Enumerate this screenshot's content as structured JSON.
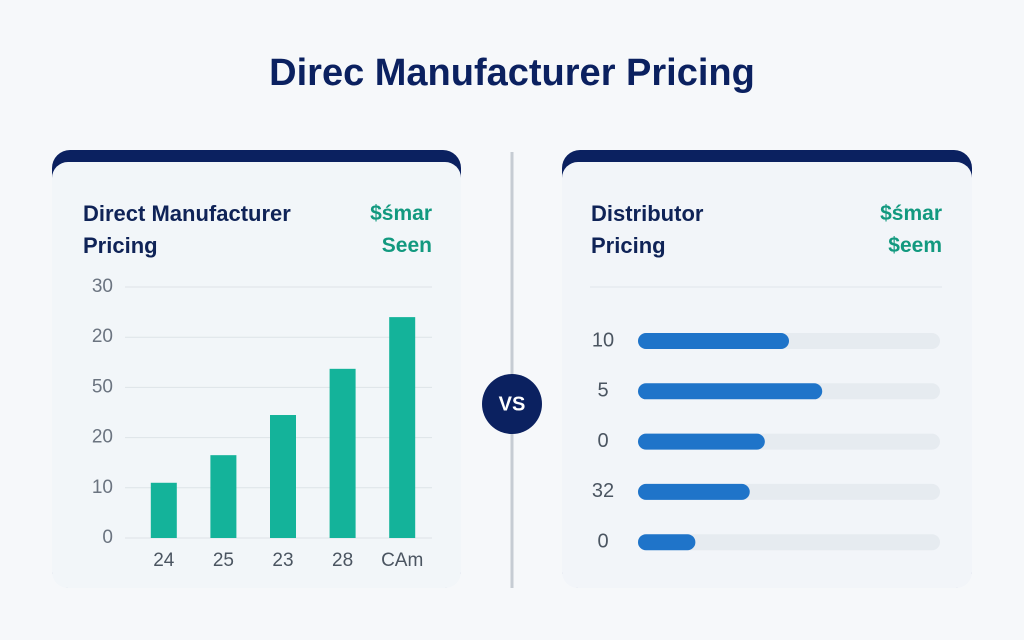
{
  "title": "Direc Manufacturer Pricing",
  "vs_label": "VS",
  "chart_data": [
    {
      "type": "bar",
      "title": "Direct Manufacturer Pricing",
      "badge": [
        "$śmar",
        "Seen"
      ],
      "categories": [
        "24",
        "25",
        "23",
        "28",
        "CAm"
      ],
      "values": [
        1.1,
        1.65,
        2.45,
        3.37,
        4.4
      ],
      "color": "#14b39a",
      "ylim": [
        0,
        5
      ],
      "yticks": [
        {
          "value": 0,
          "label": "0"
        },
        {
          "value": 1,
          "label": "10"
        },
        {
          "value": 2,
          "label": "20"
        },
        {
          "value": 3,
          "label": "50"
        },
        {
          "value": 4,
          "label": "20"
        },
        {
          "value": 5,
          "label": "30"
        }
      ],
      "grid": true
    },
    {
      "type": "hbar",
      "title": "Distributor Pricing",
      "badge": [
        "$śmar",
        "$eem"
      ],
      "categories": [
        "10",
        "5",
        "0",
        "32",
        "0"
      ],
      "values": [
        50,
        61,
        42,
        37,
        19
      ],
      "color": "#1f74c9",
      "xlim": [
        0,
        100
      ]
    }
  ]
}
